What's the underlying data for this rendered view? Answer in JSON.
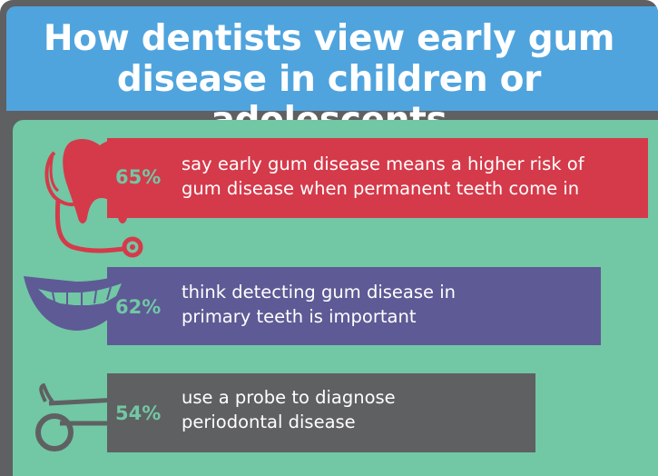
{
  "title": {
    "line1": "How dentists view early gum",
    "line2": "disease in children or adolescents"
  },
  "stats": [
    {
      "percent": "65%",
      "line1": "say early gum disease means a higher risk of",
      "line2": "gum disease when permanent teeth come in",
      "icon": "tooth-stethoscope-icon",
      "color": "#d53a4a"
    },
    {
      "percent": "62%",
      "line1": "think detecting gum disease in",
      "line2": "primary teeth is important",
      "icon": "smile-icon",
      "color": "#5e5a95"
    },
    {
      "percent": "54%",
      "line1": "use a probe to diagnose",
      "line2": "periodontal disease",
      "icon": "dental-mirror-icon",
      "color": "#5f6062"
    }
  ],
  "colors": {
    "header": "#4fa4de",
    "panel": "#72c7a5",
    "frame": "#5f6062",
    "percent_text": "#72c7a5"
  }
}
